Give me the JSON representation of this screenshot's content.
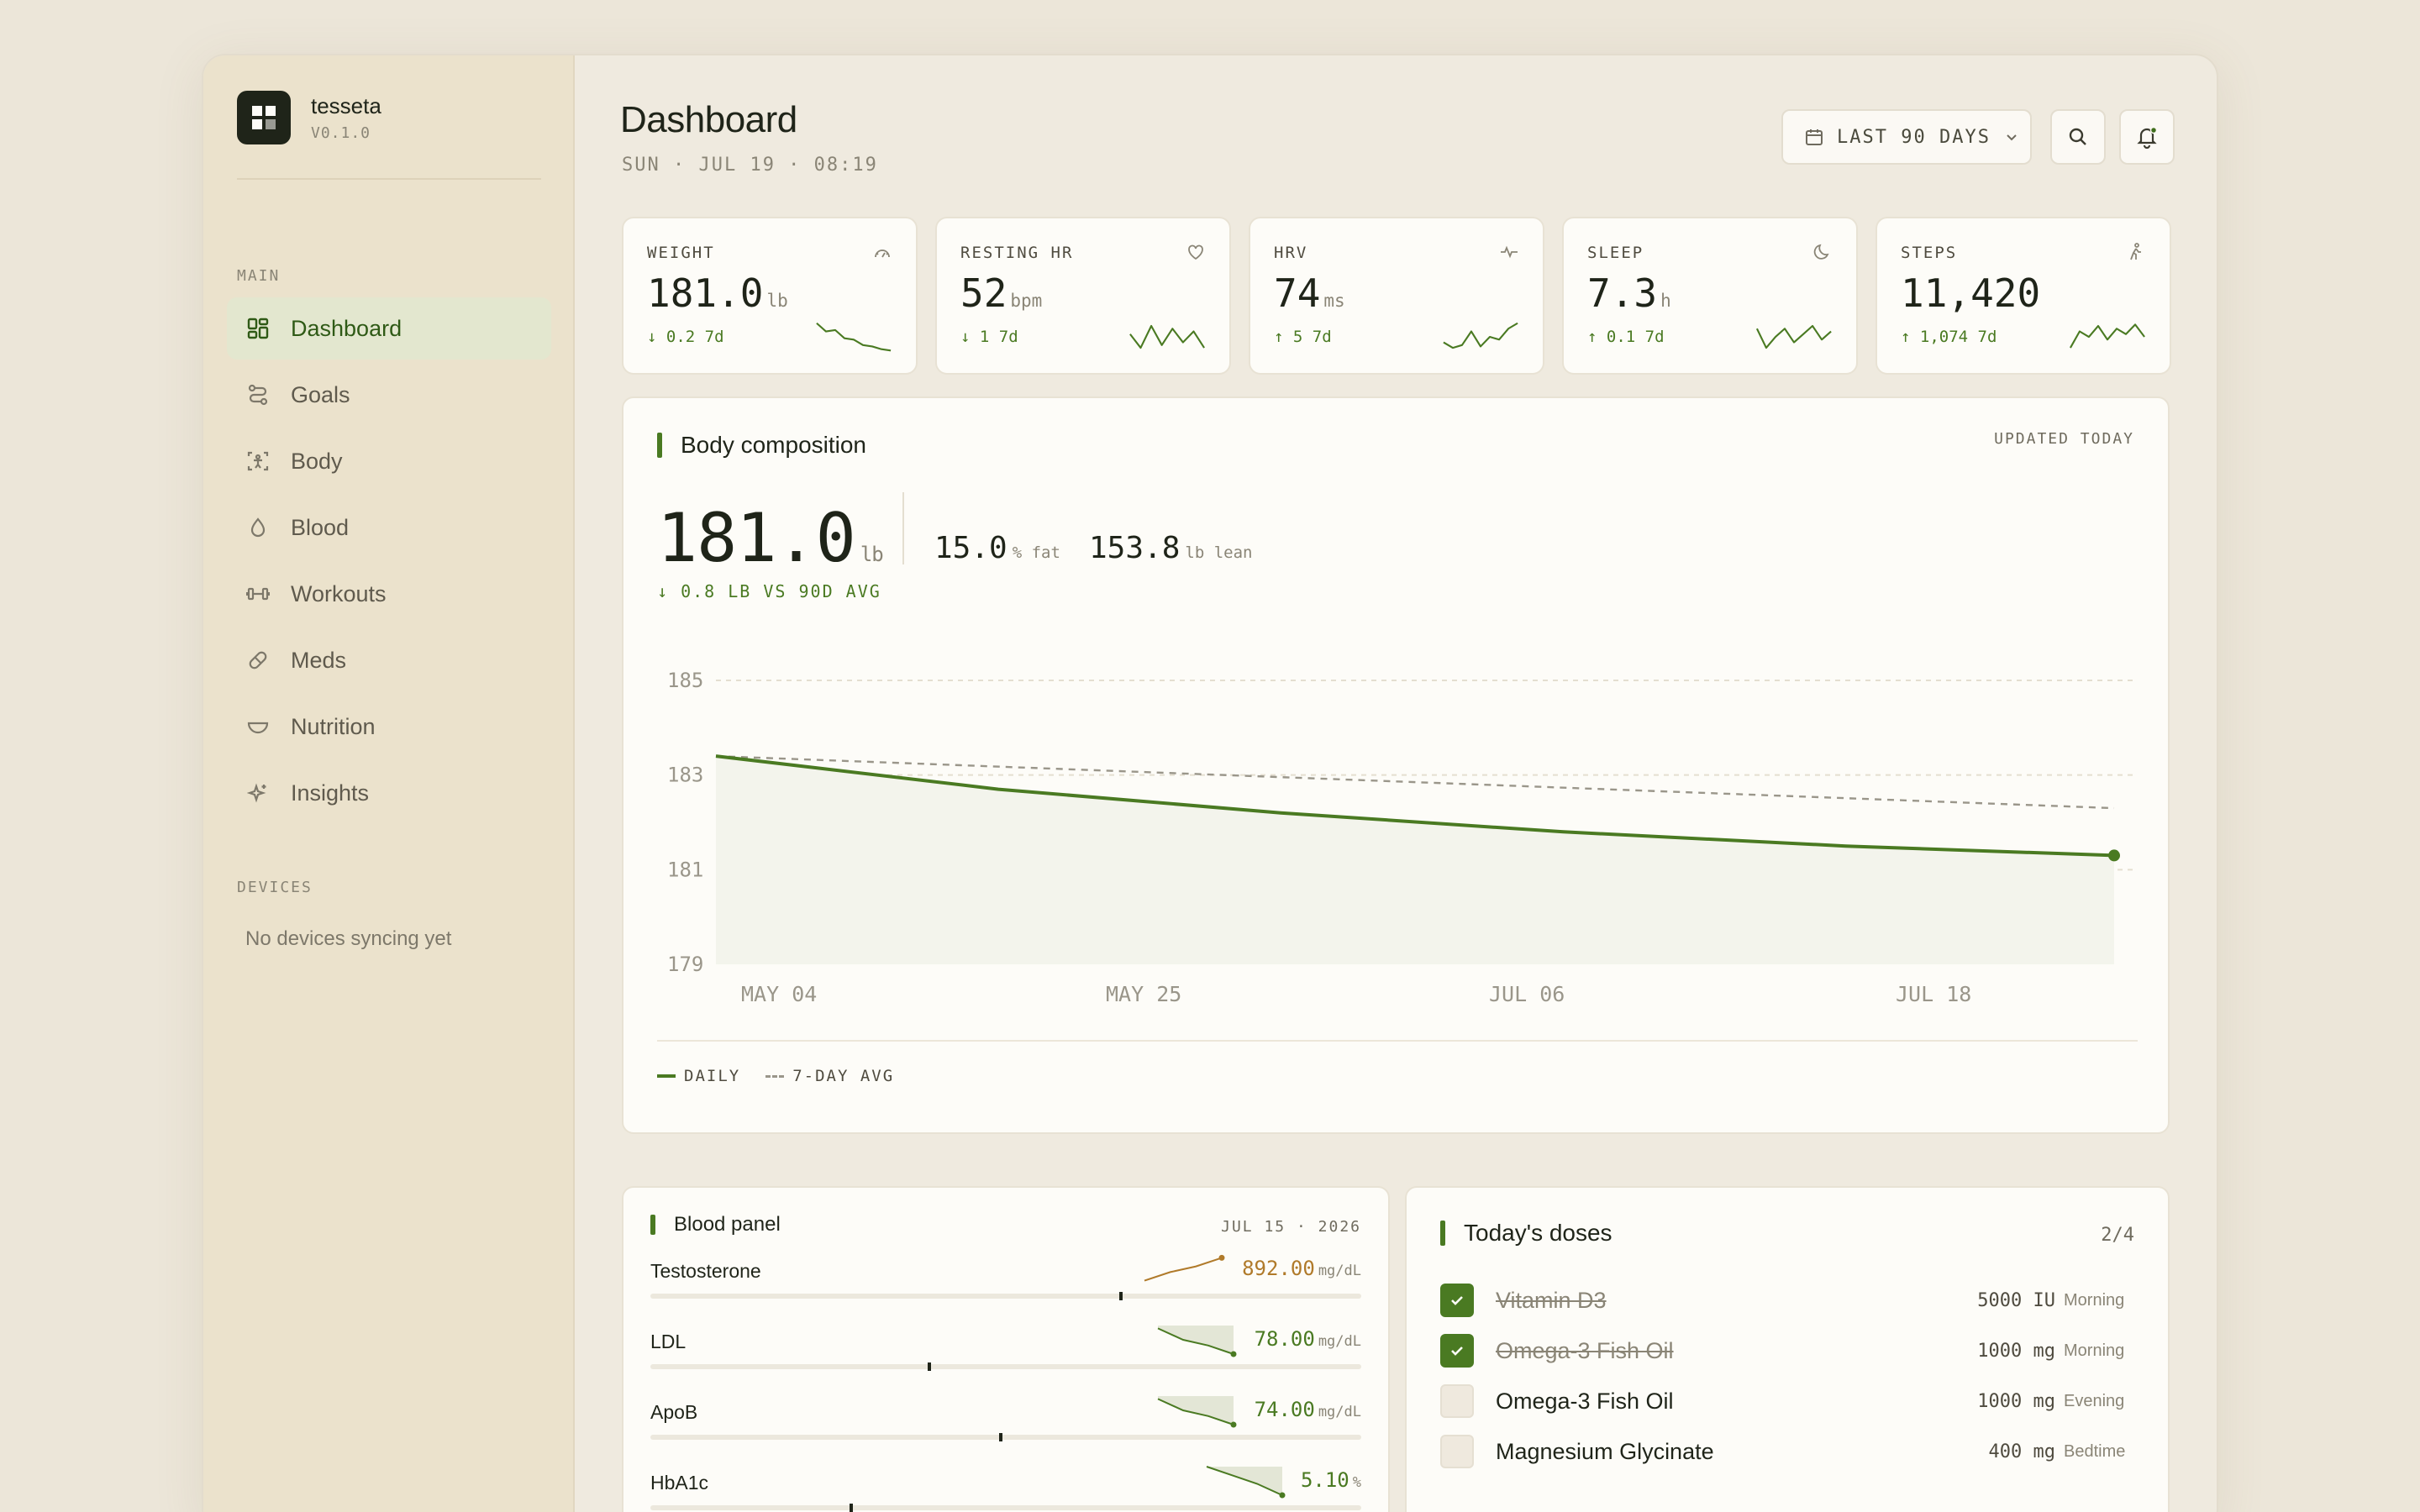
{
  "app": {
    "name": "tesseta",
    "version": "V0.1.0"
  },
  "sidebar": {
    "main_heading": "MAIN",
    "items": [
      {
        "label": "Dashboard",
        "icon": "grid-icon",
        "active": true
      },
      {
        "label": "Goals",
        "icon": "route-icon"
      },
      {
        "label": "Body",
        "icon": "body-scan-icon"
      },
      {
        "label": "Blood",
        "icon": "droplet-icon"
      },
      {
        "label": "Workouts",
        "icon": "dumbbell-icon"
      },
      {
        "label": "Meds",
        "icon": "pill-icon"
      },
      {
        "label": "Nutrition",
        "icon": "bowl-icon"
      },
      {
        "label": "Insights",
        "icon": "sparkle-icon"
      }
    ],
    "devices_heading": "DEVICES",
    "devices_empty": "No devices syncing yet"
  },
  "header": {
    "title": "Dashboard",
    "subtitle": "SUN · JUL 19 · 08:19",
    "range_label": "LAST 90 DAYS"
  },
  "stats": [
    {
      "label": "WEIGHT",
      "value": "181.0",
      "unit": "lb",
      "delta": "↓ 0.2 7d",
      "icon": "scale-icon",
      "spark": [
        0,
        0.3,
        0.25,
        0.55,
        0.6,
        0.8,
        0.85,
        0.95,
        1
      ]
    },
    {
      "label": "RESTING HR",
      "value": "52",
      "unit": "bpm",
      "delta": "↓ 1 7d",
      "icon": "heart-icon",
      "spark": [
        0.4,
        0.9,
        0.1,
        0.8,
        0.2,
        0.7,
        0.3,
        0.9
      ]
    },
    {
      "label": "HRV",
      "value": "74",
      "unit": "ms",
      "delta": "↑ 5 7d",
      "icon": "pulse-icon",
      "spark": [
        0.7,
        0.9,
        0.8,
        0.3,
        0.85,
        0.5,
        0.6,
        0.2,
        0
      ]
    },
    {
      "label": "SLEEP",
      "value": "7.3",
      "unit": "h",
      "delta": "↑ 0.1 7d",
      "icon": "moon-icon",
      "spark": [
        0.2,
        0.9,
        0.5,
        0.2,
        0.7,
        0.4,
        0.1,
        0.6,
        0.3
      ]
    },
    {
      "label": "STEPS",
      "value": "11,420",
      "unit": "",
      "delta": "↑ 1,074 7d",
      "icon": "walk-icon",
      "spark": [
        0.9,
        0.3,
        0.5,
        0.1,
        0.6,
        0.2,
        0.4,
        0.05,
        0.5
      ]
    }
  ],
  "body_comp": {
    "title": "Body composition",
    "updated": "UPDATED TODAY",
    "value": "181.0",
    "unit": "lb",
    "delta": "↓ 0.8 LB VS 90D AVG",
    "fat_value": "15.0",
    "fat_unit": "% fat",
    "lean_value": "153.8",
    "lean_unit": "lb lean",
    "legend_daily": "DAILY",
    "legend_avg": "7-DAY AVG"
  },
  "chart_data": {
    "type": "line",
    "title": "Body composition",
    "ylim": [
      179,
      185
    ],
    "yticks": [
      "185",
      "183",
      "181",
      "179"
    ],
    "xticks": [
      "MAY 04",
      "MAY 25",
      "JUL 06",
      "JUL 18"
    ],
    "grid": true,
    "legend": "bottom-left",
    "series": [
      {
        "name": "DAILY",
        "style": "solid",
        "color": "#4a7a22",
        "x": [
          "Apr 23",
          "May 13",
          "Jun 02",
          "Jun 22",
          "Jul 12",
          "Jul 31"
        ],
        "y": [
          183.4,
          182.7,
          182.2,
          181.8,
          181.5,
          181.3
        ]
      },
      {
        "name": "7-DAY AVG",
        "style": "dashed",
        "color": "#9a968a",
        "x": [
          "Apr 23",
          "Jul 31"
        ],
        "y": [
          183.4,
          182.3
        ]
      }
    ]
  },
  "blood": {
    "title": "Blood panel",
    "date": "JUL 15 · 2026",
    "rows": [
      {
        "name": "Testosterone",
        "value": "892.00",
        "unit": "mg/dL",
        "warn": true,
        "level": 0.66,
        "spark": [
          0.9,
          0.6,
          0.4,
          0.1
        ]
      },
      {
        "name": "LDL",
        "value": "78.00",
        "unit": "mg/dL",
        "warn": false,
        "level": 0.39,
        "spark": [
          0.1,
          0.5,
          0.7,
          1
        ]
      },
      {
        "name": "ApoB",
        "value": "74.00",
        "unit": "mg/dL",
        "warn": false,
        "level": 0.49,
        "spark": [
          0.1,
          0.5,
          0.7,
          1
        ]
      },
      {
        "name": "HbA1c",
        "value": "5.10",
        "unit": "%",
        "warn": false,
        "level": 0.28,
        "spark": [
          0,
          0.3,
          0.6,
          1
        ]
      }
    ]
  },
  "doses": {
    "title": "Today's doses",
    "count": "2/4",
    "items": [
      {
        "name": "Vitamin D3",
        "amount": "5000 IU",
        "time": "Morning",
        "done": true
      },
      {
        "name": "Omega-3 Fish Oil",
        "amount": "1000 mg",
        "time": "Morning",
        "done": true
      },
      {
        "name": "Omega-3 Fish Oil",
        "amount": "1000 mg",
        "time": "Evening",
        "done": false
      },
      {
        "name": "Magnesium Glycinate",
        "amount": "400 mg",
        "time": "Bedtime",
        "done": false
      }
    ]
  }
}
